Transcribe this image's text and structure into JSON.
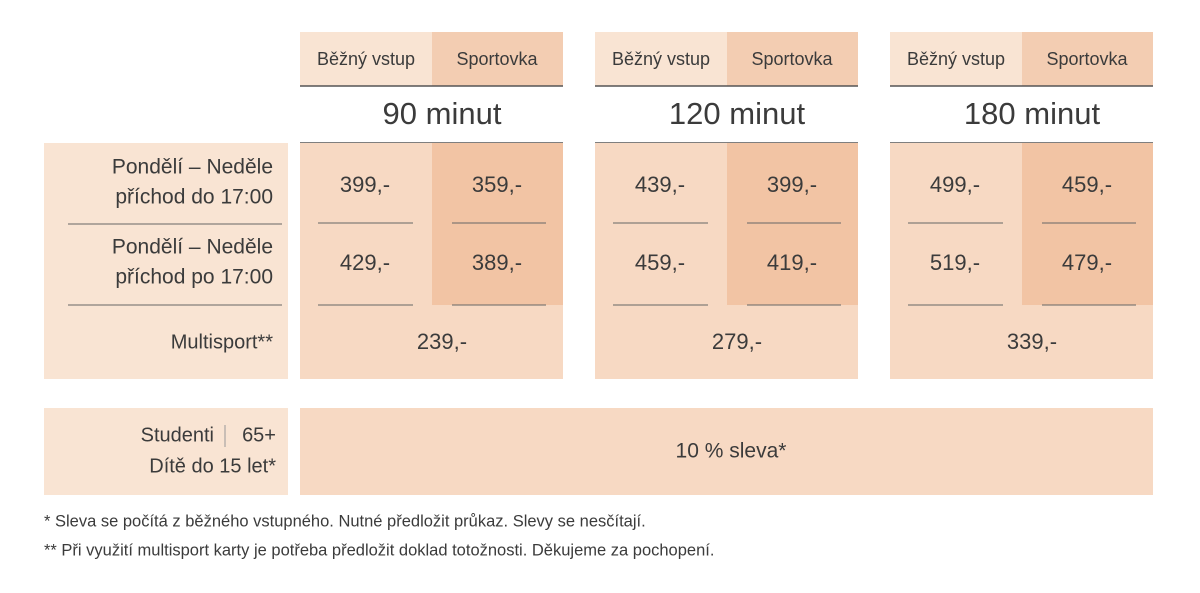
{
  "groups": [
    {
      "columns": [
        "Běžný vstup",
        "Sportovka"
      ],
      "title": "90 minut",
      "prices": [
        [
          "399,-",
          "359,-"
        ],
        [
          "429,-",
          "389,-"
        ]
      ],
      "multisport": "239,-"
    },
    {
      "columns": [
        "Běžný vstup",
        "Sportovka"
      ],
      "title": "120 minut",
      "prices": [
        [
          "439,-",
          "399,-"
        ],
        [
          "459,-",
          "419,-"
        ]
      ],
      "multisport": "279,-"
    },
    {
      "columns": [
        "Běžný vstup",
        "Sportovka"
      ],
      "title": "180 minut",
      "prices": [
        [
          "499,-",
          "459,-"
        ],
        [
          "519,-",
          "479,-"
        ]
      ],
      "multisport": "339,-"
    }
  ],
  "row_labels": [
    [
      "Pondělí – Neděle",
      "příchod do 17:00"
    ],
    [
      "Pondělí – Neděle",
      "příchod po 17:00"
    ]
  ],
  "multisport_label": "Multisport**",
  "students": {
    "label": [
      "Studenti",
      "65+",
      "Dítě do 15 let*"
    ],
    "discount": "10 % sleva*"
  },
  "footnotes": [
    "* Sleva se počítá z běžného vstupného. Nutné předložit průkaz. Slevy se nesčítají.",
    "** Při využití multisport karty je potřeba předložit doklad totožnosti. Děkujeme za pochopení."
  ]
}
